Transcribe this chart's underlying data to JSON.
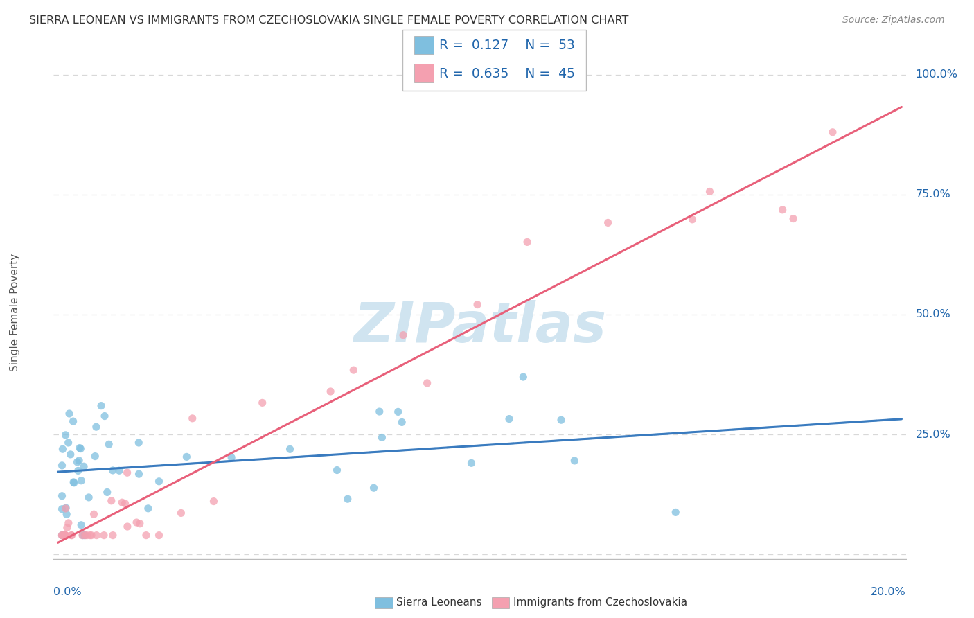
{
  "title": "SIERRA LEONEAN VS IMMIGRANTS FROM CZECHOSLOVAKIA SINGLE FEMALE POVERTY CORRELATION CHART",
  "source": "Source: ZipAtlas.com",
  "ylabel": "Single Female Poverty",
  "blue_scatter_color": "#7fbfdf",
  "pink_scatter_color": "#f4a0b0",
  "blue_line_color": "#3a7bbf",
  "pink_line_color": "#e8607a",
  "blue_dash_color": "#6aafd8",
  "watermark_color": "#d0e4f0",
  "text_color_blue": "#2166ac",
  "grid_color": "#d8d8d8",
  "axis_color": "#bbbbbb",
  "title_color": "#333333",
  "source_color": "#888888",
  "label_color": "#555555",
  "xmin": 0.0,
  "xmax": 0.2,
  "ymin": 0.0,
  "ymax": 1.0,
  "ytick_vals": [
    0.0,
    0.25,
    0.5,
    0.75,
    1.0
  ],
  "ytick_labels": [
    "",
    "25.0%",
    "50.0%",
    "75.0%",
    "100.0%"
  ],
  "R_sierra": 0.127,
  "N_sierra": 53,
  "R_czech": 0.635,
  "N_czech": 45,
  "sierra_intercept": 0.175,
  "sierra_slope": 0.55,
  "czech_intercept": 0.02,
  "czech_slope": 4.5
}
